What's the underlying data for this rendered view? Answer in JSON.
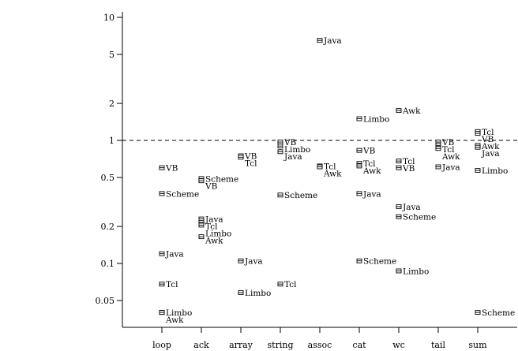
{
  "chart_data": {
    "type": "scatter",
    "title": "",
    "xlabel": "",
    "ylabel": "",
    "y_scale": "log",
    "ylim": [
      0.035,
      12
    ],
    "y_ticks": [
      {
        "value": 10,
        "label": "10"
      },
      {
        "value": 5,
        "label": "5"
      },
      {
        "value": 2,
        "label": "2"
      },
      {
        "value": 1,
        "label": "1"
      },
      {
        "value": 0.5,
        "label": "0.5"
      },
      {
        "value": 0.2,
        "label": "0.2"
      },
      {
        "value": 0.1,
        "label": "0.1"
      },
      {
        "value": 0.05,
        "label": "0.05"
      }
    ],
    "reference_line": {
      "value": 1,
      "style": "dashed"
    },
    "marker": "square-with-bar",
    "grid": false,
    "categories": [
      "loop",
      "ack",
      "array",
      "string",
      "assoc",
      "cat",
      "wc",
      "tail",
      "sum"
    ],
    "points": [
      {
        "category": "loop",
        "label": "VB",
        "value": 0.6
      },
      {
        "category": "loop",
        "label": "Scheme",
        "value": 0.37
      },
      {
        "category": "loop",
        "label": "Java",
        "value": 0.12
      },
      {
        "category": "loop",
        "label": "Tcl",
        "value": 0.068
      },
      {
        "category": "loop",
        "label": "Limbo",
        "value": 0.04
      },
      {
        "category": "loop",
        "label": "Awk",
        "value": 0.04
      },
      {
        "category": "ack",
        "label": "Scheme",
        "value": 0.49
      },
      {
        "category": "ack",
        "label": "VB",
        "value": 0.47
      },
      {
        "category": "ack",
        "label": "Java",
        "value": 0.23
      },
      {
        "category": "ack",
        "label": "Tcl",
        "value": 0.215
      },
      {
        "category": "ack",
        "label": "Limbo",
        "value": 0.205
      },
      {
        "category": "ack",
        "label": "Awk",
        "value": 0.165
      },
      {
        "category": "array",
        "label": "VB",
        "value": 0.75
      },
      {
        "category": "array",
        "label": "Tcl",
        "value": 0.73
      },
      {
        "category": "array",
        "label": "Java",
        "value": 0.105
      },
      {
        "category": "array",
        "label": "Limbo",
        "value": 0.058
      },
      {
        "category": "string",
        "label": "VB",
        "value": 0.97
      },
      {
        "category": "string",
        "label": "Limbo",
        "value": 0.9
      },
      {
        "category": "string",
        "label": "Java",
        "value": 0.81
      },
      {
        "category": "string",
        "label": "Scheme",
        "value": 0.36
      },
      {
        "category": "string",
        "label": "Tcl",
        "value": 0.068
      },
      {
        "category": "assoc",
        "label": "Java",
        "value": 6.5
      },
      {
        "category": "assoc",
        "label": "Tcl",
        "value": 0.62
      },
      {
        "category": "assoc",
        "label": "Awk",
        "value": 0.61
      },
      {
        "category": "cat",
        "label": "Limbo",
        "value": 1.5
      },
      {
        "category": "cat",
        "label": "VB",
        "value": 0.83
      },
      {
        "category": "cat",
        "label": "Tcl",
        "value": 0.65
      },
      {
        "category": "cat",
        "label": "Awk",
        "value": 0.62
      },
      {
        "category": "cat",
        "label": "Java",
        "value": 0.37
      },
      {
        "category": "cat",
        "label": "Scheme",
        "value": 0.105
      },
      {
        "category": "wc",
        "label": "Awk",
        "value": 1.75
      },
      {
        "category": "wc",
        "label": "Tcl",
        "value": 0.68
      },
      {
        "category": "wc",
        "label": "VB",
        "value": 0.6
      },
      {
        "category": "wc",
        "label": "Java",
        "value": 0.29
      },
      {
        "category": "wc",
        "label": "Scheme",
        "value": 0.24
      },
      {
        "category": "wc",
        "label": "Limbo",
        "value": 0.087
      },
      {
        "category": "tail",
        "label": "VB",
        "value": 0.97
      },
      {
        "category": "tail",
        "label": "Tcl",
        "value": 0.91
      },
      {
        "category": "tail",
        "label": "Awk",
        "value": 0.86
      },
      {
        "category": "tail",
        "label": "Java",
        "value": 0.61
      },
      {
        "category": "sum",
        "label": "Tcl",
        "value": 1.18
      },
      {
        "category": "sum",
        "label": "VB",
        "value": 1.14
      },
      {
        "category": "sum",
        "label": "Awk",
        "value": 0.91
      },
      {
        "category": "sum",
        "label": "Java",
        "value": 0.88
      },
      {
        "category": "sum",
        "label": "Limbo",
        "value": 0.57
      },
      {
        "category": "sum",
        "label": "Scheme",
        "value": 0.04
      }
    ]
  }
}
